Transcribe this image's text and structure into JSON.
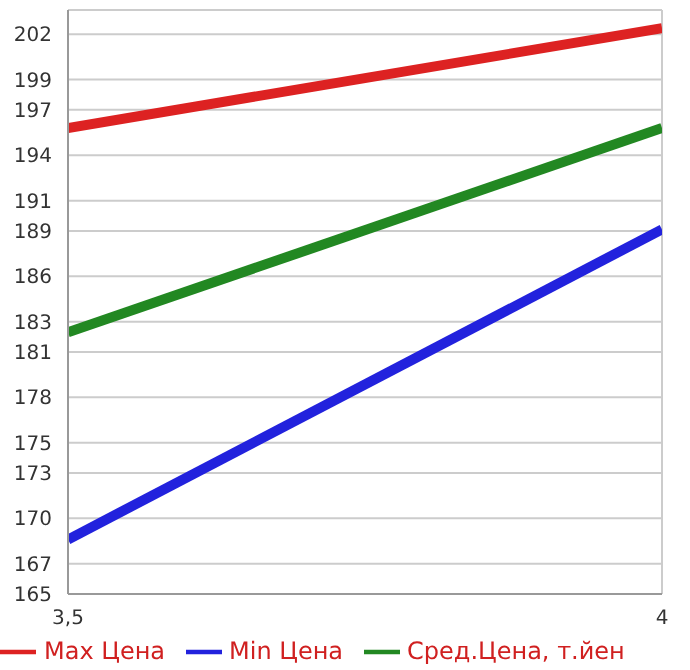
{
  "chart_data": {
    "type": "line",
    "x": [
      3.5,
      4
    ],
    "xlim": [
      3.5,
      4
    ],
    "xticks": [
      {
        "value": 3.5,
        "label": "3,5"
      },
      4
    ],
    "ylim": [
      165,
      203.6
    ],
    "yticks": [
      165,
      167,
      170,
      173,
      175,
      178,
      181,
      183,
      186,
      189,
      191,
      194,
      197,
      199,
      202
    ],
    "series": [
      {
        "name": "Max Цена",
        "color": "#dd2222",
        "values": [
          195.8,
          202.4
        ]
      },
      {
        "name": "Min Цена",
        "color": "#2222dd",
        "values": [
          168.6,
          189.1
        ]
      },
      {
        "name": "Сред.Цена, т.йен",
        "color": "#228822",
        "values": [
          182.3,
          195.8
        ]
      }
    ],
    "grid": true,
    "legend": "bottom",
    "marker": "none",
    "line_style": "solid"
  }
}
